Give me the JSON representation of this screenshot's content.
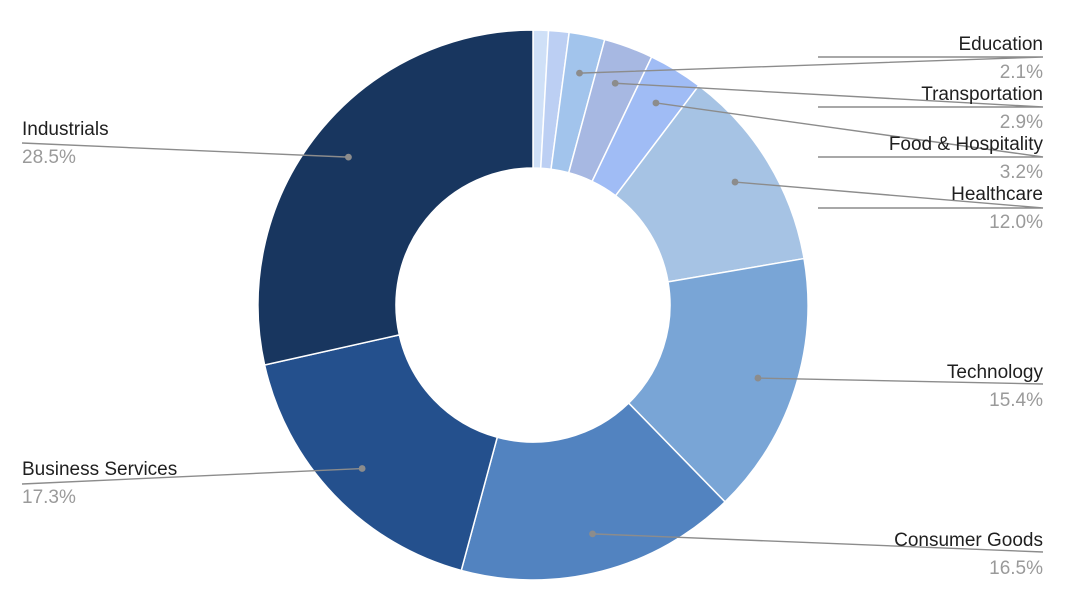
{
  "chart_data": {
    "type": "pie",
    "variant": "donut",
    "title": "",
    "slices": [
      {
        "label": "",
        "value": 0.9,
        "pct_text": "",
        "color": "#cfe0f7",
        "labeled": false
      },
      {
        "label": "",
        "value": 1.2,
        "pct_text": "",
        "color": "#bccff3",
        "labeled": false
      },
      {
        "label": "Education",
        "value": 2.1,
        "pct_text": "2.1%",
        "color": "#a2c4ec",
        "labeled": true
      },
      {
        "label": "Transportation",
        "value": 2.9,
        "pct_text": "2.9%",
        "color": "#a7b8e2",
        "labeled": true
      },
      {
        "label": "Food & Hospitality",
        "value": 3.2,
        "pct_text": "3.2%",
        "color": "#a0bcf5",
        "labeled": true
      },
      {
        "label": "Healthcare",
        "value": 12.0,
        "pct_text": "12.0%",
        "color": "#a6c3e4",
        "labeled": true
      },
      {
        "label": "Technology",
        "value": 15.4,
        "pct_text": "15.4%",
        "color": "#79a5d6",
        "labeled": true
      },
      {
        "label": "Consumer Goods",
        "value": 16.5,
        "pct_text": "16.5%",
        "color": "#5283c0",
        "labeled": true
      },
      {
        "label": "Business Services",
        "value": 17.3,
        "pct_text": "17.3%",
        "color": "#24508d",
        "labeled": true
      },
      {
        "label": "Industrials",
        "value": 28.5,
        "pct_text": "28.5%",
        "color": "#18365f",
        "labeled": true
      }
    ],
    "legend": "none",
    "label_style": "outside-with-leader-lines"
  }
}
